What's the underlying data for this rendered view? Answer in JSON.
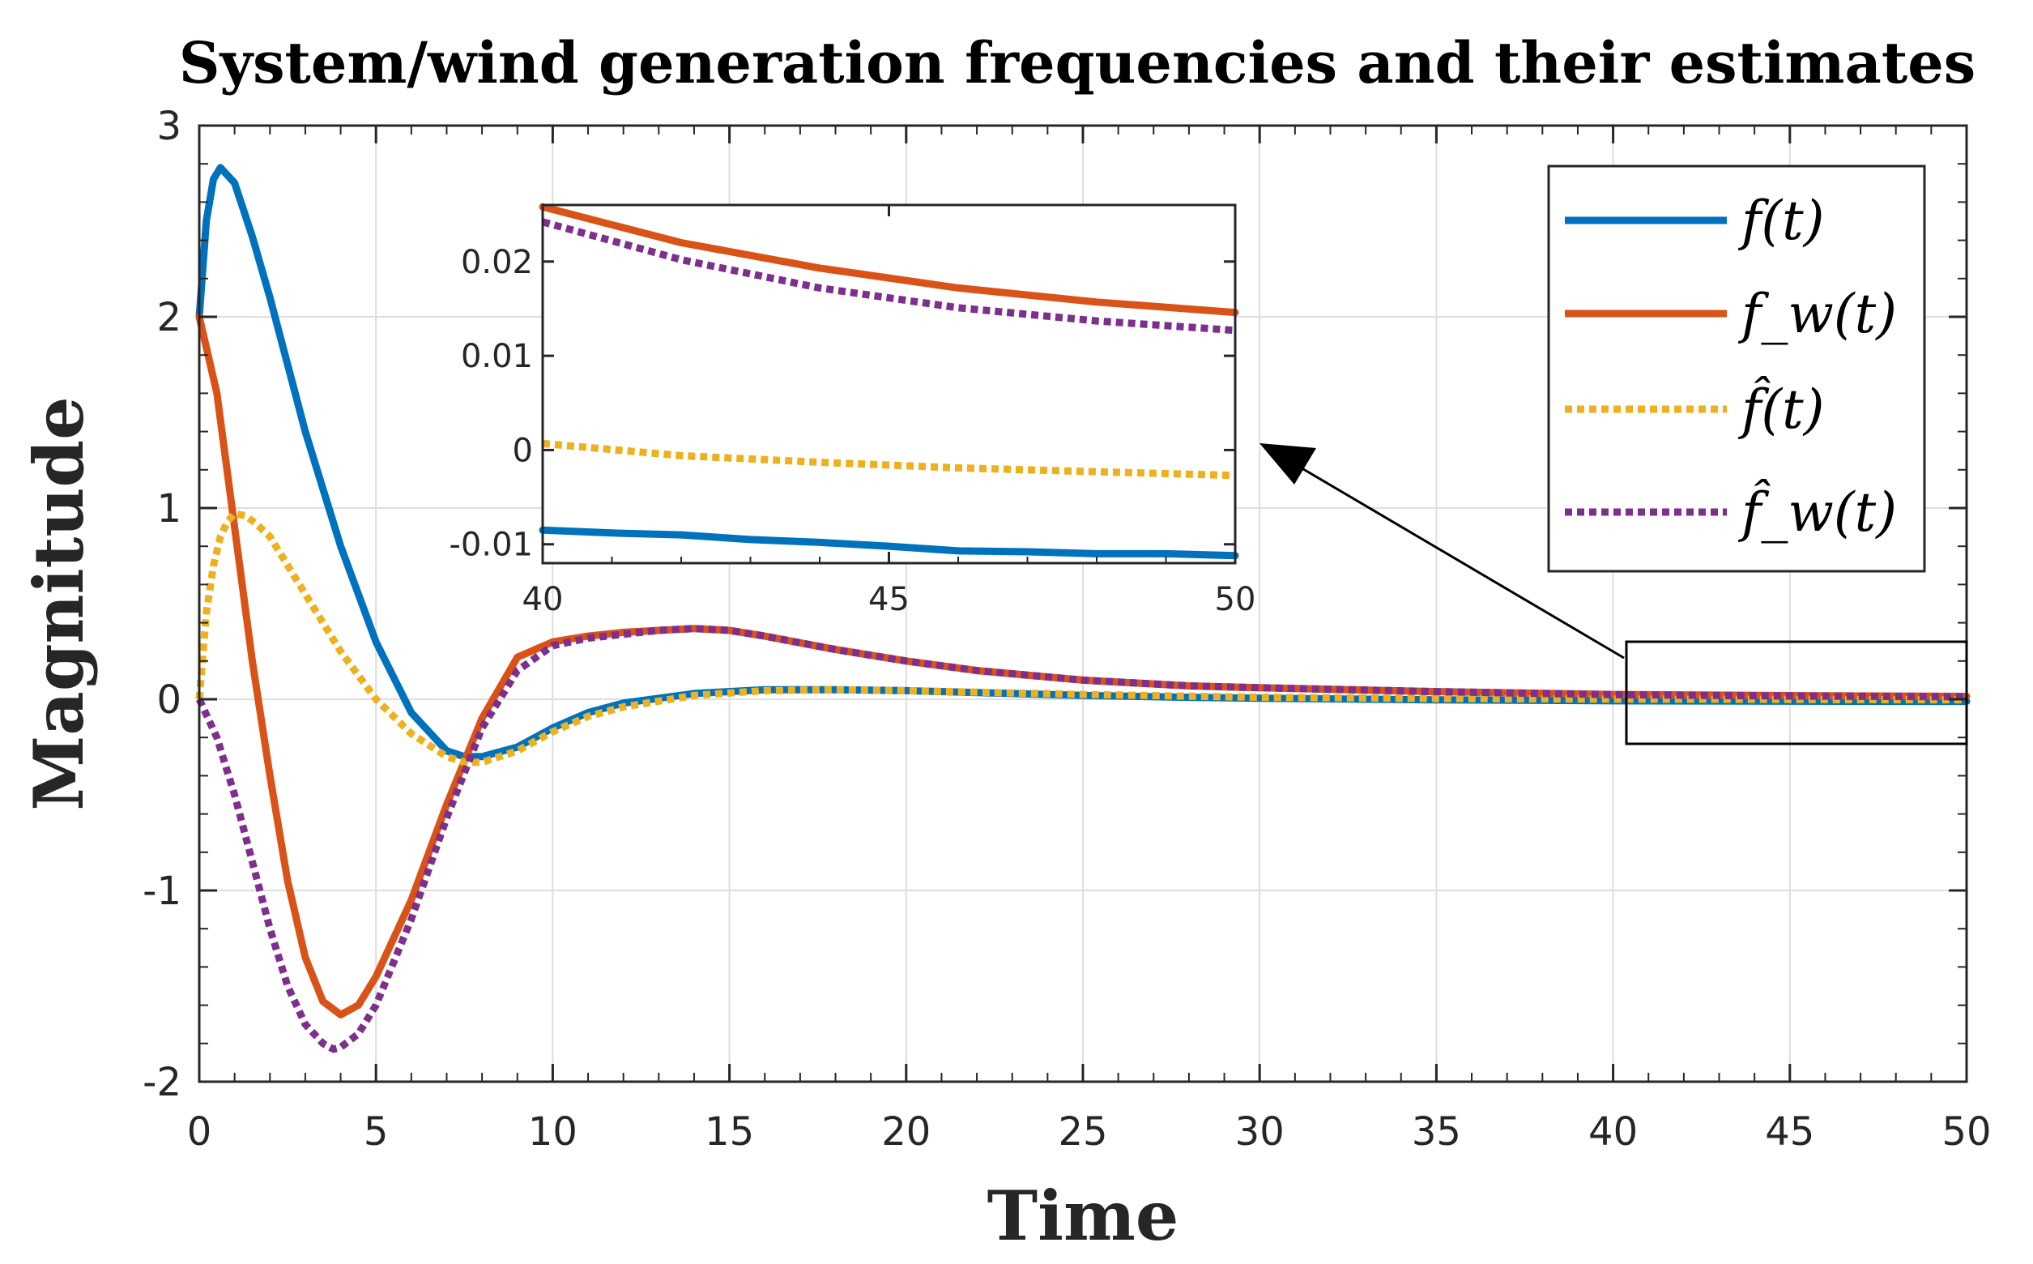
{
  "chart_data": {
    "type": "line",
    "title": "System/wind generation frequencies and their estimates",
    "xlabel": "Time",
    "ylabel": "Magnitude",
    "xlim": [
      0,
      50
    ],
    "ylim": [
      -2,
      3
    ],
    "xticks": [
      "0",
      "5",
      "10",
      "15",
      "20",
      "25",
      "30",
      "35",
      "40",
      "45",
      "50"
    ],
    "yticks": [
      "-2",
      "-1",
      "0",
      "1",
      "2",
      "3"
    ],
    "grid": true,
    "legend_position": "top-right",
    "series": [
      {
        "name": "f(t)",
        "style": "solid",
        "color": "#0072BD",
        "x": [
          0,
          0.2,
          0.4,
          0.6,
          1,
          1.5,
          2,
          3,
          4,
          5,
          6,
          7,
          7.5,
          8,
          9,
          10,
          11,
          12,
          14,
          16,
          18,
          20,
          22,
          25,
          28,
          30,
          35,
          40,
          45,
          50
        ],
        "y": [
          2.0,
          2.5,
          2.72,
          2.78,
          2.7,
          2.42,
          2.1,
          1.4,
          0.8,
          0.3,
          -0.07,
          -0.27,
          -0.3,
          -0.3,
          -0.25,
          -0.15,
          -0.07,
          -0.02,
          0.03,
          0.05,
          0.05,
          0.045,
          0.035,
          0.02,
          0.01,
          0.005,
          -0.003,
          -0.008,
          -0.01,
          -0.011
        ]
      },
      {
        "name": "f_w(t)",
        "style": "solid",
        "color": "#D95319",
        "x": [
          0,
          0.5,
          1,
          1.5,
          2,
          2.5,
          3,
          3.5,
          4,
          4.5,
          5,
          6,
          7,
          8,
          9,
          10,
          11,
          12,
          13,
          14,
          15,
          16,
          18,
          20,
          22,
          25,
          28,
          30,
          35,
          40,
          45,
          50
        ],
        "y": [
          2.0,
          1.6,
          0.9,
          0.2,
          -0.4,
          -0.95,
          -1.35,
          -1.58,
          -1.65,
          -1.6,
          -1.45,
          -1.05,
          -0.55,
          -0.1,
          0.22,
          0.3,
          0.33,
          0.35,
          0.36,
          0.37,
          0.36,
          0.33,
          0.26,
          0.2,
          0.15,
          0.1,
          0.07,
          0.06,
          0.04,
          0.025,
          0.019,
          0.015
        ]
      },
      {
        "name": "f̂(t)",
        "style": "dotted",
        "color": "#EDB120",
        "x": [
          0,
          0.2,
          0.4,
          0.6,
          0.8,
          1.0,
          1.3,
          1.6,
          2,
          2.5,
          3,
          4,
          5,
          6,
          7,
          7.5,
          8,
          9,
          10,
          11,
          12,
          14,
          16,
          18,
          20,
          25,
          30,
          35,
          40,
          45,
          50
        ],
        "y": [
          0.0,
          0.45,
          0.7,
          0.85,
          0.93,
          0.97,
          0.96,
          0.92,
          0.85,
          0.7,
          0.55,
          0.25,
          0.0,
          -0.18,
          -0.3,
          -0.33,
          -0.33,
          -0.27,
          -0.17,
          -0.09,
          -0.04,
          0.02,
          0.045,
          0.05,
          0.045,
          0.025,
          0.01,
          0.004,
          0.001,
          -0.001,
          -0.003
        ]
      },
      {
        "name": "f̂_w(t)",
        "style": "dotted",
        "color": "#7E2F8E",
        "x": [
          0,
          0.5,
          1,
          1.5,
          2,
          2.5,
          3,
          3.5,
          3.8,
          4,
          4.5,
          5,
          6,
          7,
          8,
          9,
          10,
          11,
          12,
          13,
          14,
          15,
          16,
          18,
          20,
          22,
          25,
          28,
          30,
          35,
          40,
          45,
          50
        ],
        "y": [
          0.0,
          -0.2,
          -0.5,
          -0.85,
          -1.2,
          -1.5,
          -1.7,
          -1.8,
          -1.83,
          -1.82,
          -1.75,
          -1.6,
          -1.15,
          -0.62,
          -0.15,
          0.15,
          0.28,
          0.32,
          0.34,
          0.36,
          0.37,
          0.36,
          0.33,
          0.26,
          0.2,
          0.15,
          0.1,
          0.07,
          0.06,
          0.04,
          0.024,
          0.017,
          0.013
        ]
      }
    ],
    "inset": {
      "xlim": [
        40,
        50
      ],
      "ylim": [
        -0.012,
        0.026
      ],
      "xticks": [
        "40",
        "45",
        "50"
      ],
      "yticks": [
        "-0.01",
        "0",
        "0.01",
        "0.02"
      ],
      "grid": false,
      "series": [
        {
          "name": "f(t)",
          "x": [
            40,
            41,
            42,
            43,
            44,
            45,
            46,
            47,
            48,
            49,
            50
          ],
          "y": [
            -0.0085,
            -0.0088,
            -0.009,
            -0.0095,
            -0.0098,
            -0.0102,
            -0.0107,
            -0.0108,
            -0.011,
            -0.011,
            -0.0112
          ]
        },
        {
          "name": "f_w(t)",
          "x": [
            40,
            42,
            44,
            46,
            48,
            50
          ],
          "y": [
            0.0258,
            0.022,
            0.0193,
            0.0172,
            0.0157,
            0.0146
          ]
        },
        {
          "name": "f̂(t)",
          "x": [
            40,
            42,
            44,
            46,
            48,
            50
          ],
          "y": [
            0.0007,
            -0.0006,
            -0.0013,
            -0.0019,
            -0.0023,
            -0.0027
          ]
        },
        {
          "name": "f̂_w(t)",
          "x": [
            40,
            42,
            44,
            46,
            48,
            50
          ],
          "y": [
            0.0242,
            0.0202,
            0.0172,
            0.0151,
            0.0137,
            0.0127
          ]
        }
      ]
    }
  }
}
